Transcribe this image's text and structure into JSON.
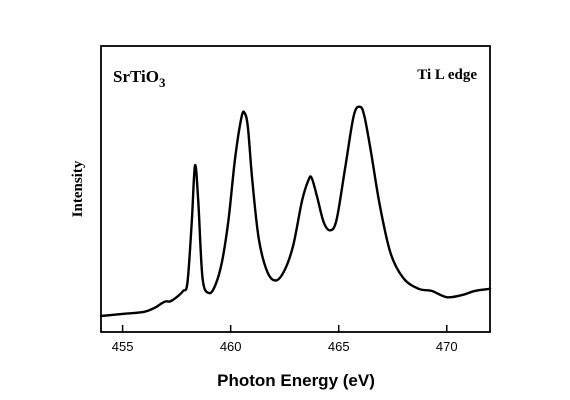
{
  "chart_data": {
    "type": "line",
    "title": "",
    "xlabel": "Photon Energy  (eV)",
    "ylabel": "Intensity",
    "xlim": [
      454,
      472
    ],
    "ylim": [
      0,
      1.1
    ],
    "x_ticks": [
      455,
      460,
      465,
      470
    ],
    "x_tick_labels": [
      "455",
      "460",
      "465",
      "470"
    ],
    "y_ticks_labeled": false,
    "grid": false,
    "legend": "none",
    "annotations": [
      {
        "text_main": "SrTiO",
        "text_sub": "3",
        "position": "top-left"
      },
      {
        "text": "Ti L edge",
        "position": "top-right"
      }
    ],
    "series": [
      {
        "color": "#000000",
        "x": [
          454,
          455,
          456,
          456.5,
          456.8,
          457.0,
          457.2,
          457.5,
          457.8,
          458.0,
          458.2,
          458.35,
          458.5,
          458.7,
          459.0,
          459.3,
          459.6,
          459.9,
          460.2,
          460.5,
          460.65,
          460.8,
          461.0,
          461.3,
          461.7,
          462.1,
          462.5,
          462.9,
          463.3,
          463.6,
          463.75,
          464.0,
          464.3,
          464.6,
          464.9,
          465.3,
          465.7,
          466.0,
          466.2,
          466.5,
          466.9,
          467.4,
          468.0,
          468.7,
          469.3,
          470.0,
          470.7,
          471.3,
          472.0
        ],
        "y": [
          0.0,
          0.01,
          0.02,
          0.04,
          0.06,
          0.07,
          0.07,
          0.09,
          0.12,
          0.16,
          0.45,
          0.72,
          0.55,
          0.18,
          0.11,
          0.15,
          0.26,
          0.46,
          0.75,
          0.95,
          0.97,
          0.9,
          0.65,
          0.37,
          0.21,
          0.17,
          0.22,
          0.34,
          0.55,
          0.65,
          0.66,
          0.57,
          0.45,
          0.41,
          0.46,
          0.71,
          0.96,
          1.0,
          0.95,
          0.78,
          0.53,
          0.3,
          0.18,
          0.13,
          0.12,
          0.09,
          0.1,
          0.12,
          0.13
        ]
      }
    ]
  }
}
